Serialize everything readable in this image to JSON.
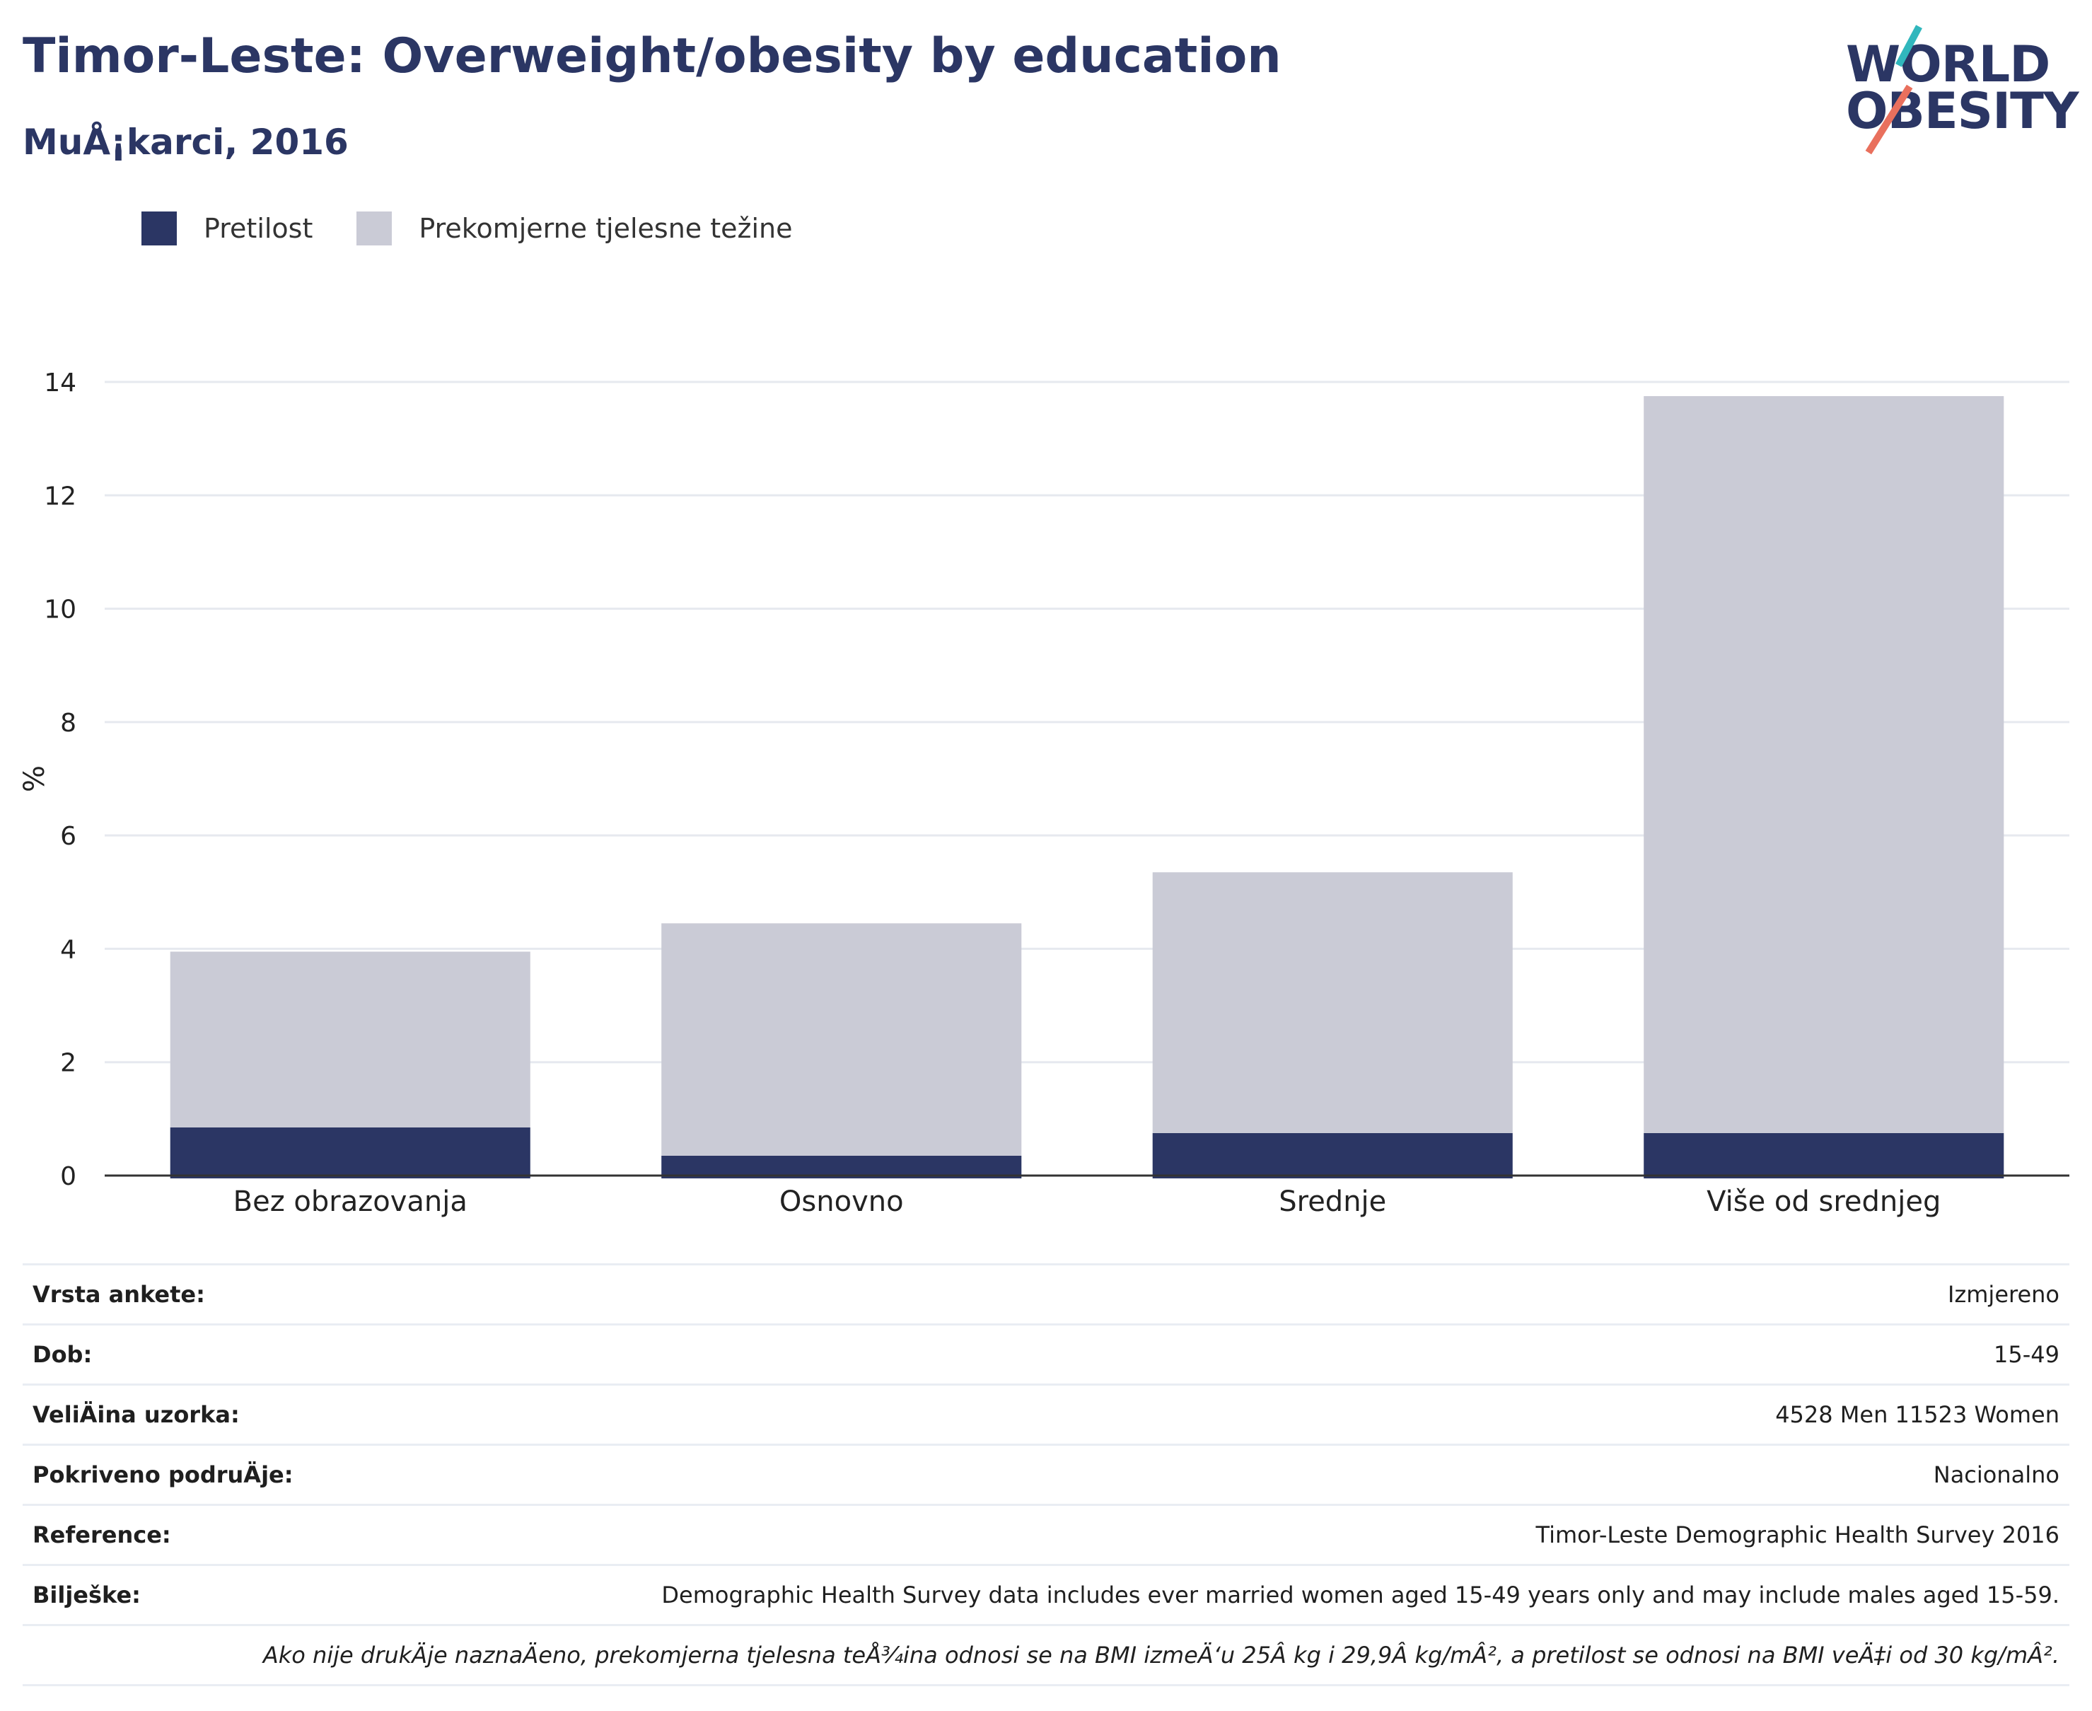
{
  "header": {
    "title": "Timor-Leste: Overweight/obesity by education",
    "subtitle": "MuÅ¡karci, 2016"
  },
  "logo": {
    "line1": "WORLD",
    "line2": "OBESITY",
    "accent_teal": "#31b7bd",
    "accent_red": "#e9705d"
  },
  "legend": [
    {
      "label": "Pretilost",
      "color": "#2b3664"
    },
    {
      "label": "Prekomjerne tjelesne težine",
      "color": "#cacbd6"
    }
  ],
  "chart_data": {
    "type": "bar",
    "stacked": true,
    "categories": [
      "Bez obrazovanja",
      "Osnovno",
      "Srednje",
      "Više od srednjeg"
    ],
    "series": [
      {
        "name": "Pretilost",
        "values": [
          0.85,
          0.35,
          0.75,
          0.75
        ],
        "color": "#2b3664"
      },
      {
        "name": "Prekomjerne tjelesne težine",
        "values": [
          3.1,
          4.1,
          4.6,
          13.0
        ],
        "color": "#cacbd6"
      }
    ],
    "title": "Timor-Leste: Overweight/obesity by education",
    "ylabel": "%",
    "xlabel": "",
    "ylim": [
      0,
      14
    ],
    "yticks": [
      0,
      2,
      4,
      6,
      8,
      10,
      12,
      14
    ],
    "grid": true,
    "legend_position": "top-left"
  },
  "info": {
    "rows": [
      {
        "key": "Vrsta ankete:",
        "value": "Izmjereno"
      },
      {
        "key": "Dob:",
        "value": "15-49"
      },
      {
        "key": "VeliÄ\u001dina uzorka:",
        "value": "4528 Men 11523 Women"
      },
      {
        "key": "Pokriveno podruÄ\u001dje:",
        "value": "Nacionalno"
      },
      {
        "key": "Reference:",
        "value": "Timor-Leste Demographic Health Survey 2016"
      },
      {
        "key": "Bilješke:",
        "value": "Demographic Health Survey data includes ever married women aged 15-49 years only and may include males aged 15-59."
      }
    ],
    "footnote": "Ako nije drukÄ\u001dje naznaÄ\u001deno, prekomjerna tjelesna teÅ¾ina odnosi se na BMI izmeÄ‘u 25Â kg i 29,9Â kg/mÂ², a pretilost se odnosi na BMI veÄ‡i od 30 kg/mÂ²."
  }
}
